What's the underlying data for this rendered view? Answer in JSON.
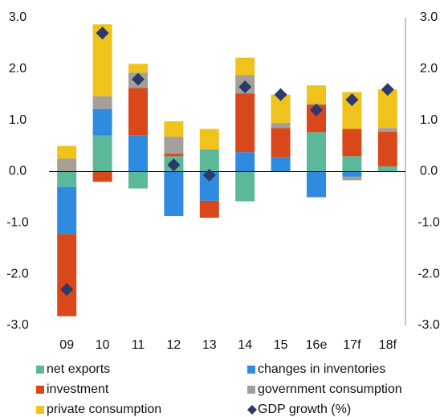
{
  "chart_data": {
    "type": "bar",
    "stacked": true,
    "categories": [
      "09",
      "10",
      "11",
      "12",
      "13",
      "14",
      "15",
      "16e",
      "17f",
      "18f"
    ],
    "series": [
      {
        "name": "net exports",
        "color": "#5bb899",
        "values": [
          -0.3,
          0.7,
          -0.33,
          0.3,
          0.43,
          -0.58,
          0,
          0.77,
          0.3,
          0.1
        ]
      },
      {
        "name": "changes in inventories",
        "color": "#2e8be0",
        "values": [
          -0.92,
          0.52,
          0.71,
          -0.87,
          -0.57,
          0.38,
          0.28,
          -0.5,
          -0.1,
          0
        ]
      },
      {
        "name": "investment",
        "color": "#d8481b",
        "values": [
          -1.6,
          -0.2,
          0.92,
          0.05,
          -0.33,
          1.14,
          0.57,
          0.53,
          0.53,
          0.68
        ]
      },
      {
        "name": "government consumption",
        "color": "#a49f99",
        "values": [
          0.25,
          0.25,
          0.3,
          0.33,
          0,
          0.36,
          0.1,
          0.02,
          -0.07,
          0.07
        ]
      },
      {
        "name": "private consumption",
        "color": "#f0c21c",
        "values": [
          0.25,
          1.4,
          0.17,
          0.3,
          0.4,
          0.34,
          0.55,
          0.36,
          0.72,
          0.75
        ]
      },
      {
        "name": "GDP growth (%)",
        "color": "#2b3a6b",
        "type": "scatter",
        "marker": "diamond",
        "values": [
          -2.3,
          2.7,
          1.8,
          0.13,
          -0.07,
          1.65,
          1.5,
          1.2,
          1.4,
          1.6
        ]
      }
    ],
    "ylim": [
      -3,
      3
    ],
    "yticks": [
      {
        "value": 3,
        "label": "3.0"
      },
      {
        "value": 2,
        "label": "2.0"
      },
      {
        "value": 1,
        "label": "1.0"
      },
      {
        "value": 0,
        "label": "0.0"
      },
      {
        "value": -1,
        "label": "-1.0"
      },
      {
        "value": -2,
        "label": "-2.0"
      },
      {
        "value": -3,
        "label": "-3.0"
      }
    ],
    "y2lim": [
      -3,
      3
    ],
    "y2ticks": [
      {
        "value": 3,
        "label": "3.0"
      },
      {
        "value": 2,
        "label": "2.0"
      },
      {
        "value": 1,
        "label": "1.0"
      },
      {
        "value": 0,
        "label": "0.0"
      },
      {
        "value": -1,
        "label": "-1.0"
      },
      {
        "value": -2,
        "label": "-2.0"
      },
      {
        "value": -3,
        "label": "-3.0"
      }
    ],
    "grid": false,
    "legend": "bottom"
  }
}
